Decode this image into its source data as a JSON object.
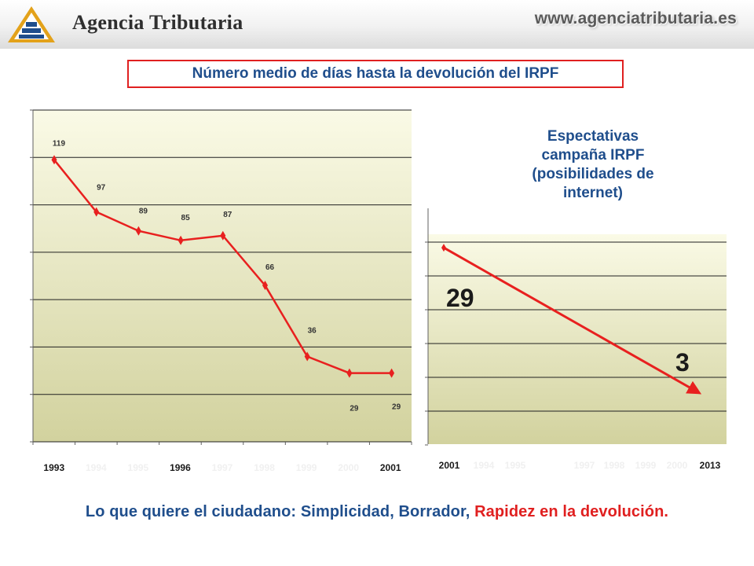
{
  "header": {
    "brand": "Agencia Tributaria",
    "url": "www.agenciatributaria.es"
  },
  "title": "Número medio de días hasta la devolución del IRPF",
  "subtitle_lines": [
    "Espectativas",
    "campaña IRPF",
    "(posibilidades de",
    "internet)"
  ],
  "footer": {
    "prefix": "Lo que quiere el ciudadano: Simplicidad,  Borrador, ",
    "highlight": "Rapidez en la devolución."
  },
  "colors": {
    "line": "#e8201f",
    "title_text": "#1f4e8c",
    "plot_bg_top": "#fafae6",
    "plot_bg_bottom": "#d2d29e"
  },
  "chart_data": [
    {
      "type": "line",
      "categories": [
        "1993",
        "1994",
        "1995",
        "1996",
        "1997",
        "1998",
        "1999",
        "2000",
        "2001"
      ],
      "series": [
        {
          "values": [
            119,
            97,
            89,
            85,
            87,
            66,
            36,
            29,
            29
          ]
        }
      ],
      "data_labels": [
        "119",
        "97",
        "89",
        "85",
        "87",
        "66",
        "36",
        "29",
        "29"
      ],
      "ylim": [
        0,
        140
      ],
      "grid": true,
      "legend": "none"
    },
    {
      "type": "line",
      "categories": [
        "2001",
        "1994",
        "1995",
        "",
        "1997",
        "1998",
        "1999",
        "2000",
        "2013"
      ],
      "series": [
        {
          "x": [
            "2001",
            "2013"
          ],
          "values": [
            29,
            3
          ]
        }
      ],
      "data_labels": [
        "29",
        "3"
      ],
      "ylim": [
        0,
        30
      ],
      "grid": true,
      "legend": "none"
    }
  ]
}
